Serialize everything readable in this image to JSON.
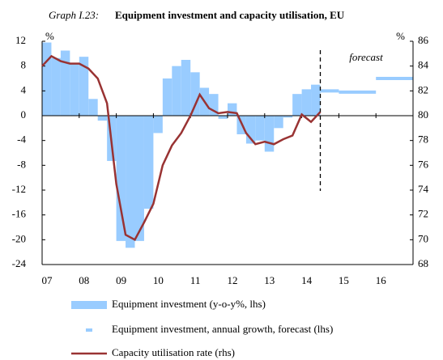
{
  "chart_data": {
    "type": "bar-line",
    "graph_label": "Graph I.23:",
    "title": "Equipment investment and capacity utilisation, EU",
    "y_unit": "%",
    "y2_unit": "%",
    "annotation": "forecast",
    "forecast_start": 2014.5,
    "xlim": [
      2007,
      2017
    ],
    "xticks": [
      {
        "value": 2007,
        "label": "07"
      },
      {
        "value": 2008,
        "label": "08"
      },
      {
        "value": 2009,
        "label": "09"
      },
      {
        "value": 2010,
        "label": "10"
      },
      {
        "value": 2011,
        "label": "11"
      },
      {
        "value": 2012,
        "label": "12"
      },
      {
        "value": 2013,
        "label": "13"
      },
      {
        "value": 2014,
        "label": "14"
      },
      {
        "value": 2015,
        "label": "15"
      },
      {
        "value": 2016,
        "label": "16"
      }
    ],
    "ylim": [
      -24,
      12
    ],
    "yticks": [
      -24,
      -20,
      -16,
      -12,
      -8,
      -4,
      0,
      4,
      8,
      12
    ],
    "y2lim": [
      68,
      86
    ],
    "y2ticks": [
      68,
      70,
      72,
      74,
      76,
      78,
      80,
      82,
      84,
      86
    ],
    "series": [
      {
        "name": "Equipment investment (y-o-y%, lhs)",
        "kind": "bar",
        "color": "#99ccff",
        "x": [
          2007,
          2007.25,
          2007.5,
          2007.75,
          2008,
          2008.25,
          2008.5,
          2008.75,
          2009,
          2009.25,
          2009.5,
          2009.75,
          2010,
          2010.25,
          2010.5,
          2010.75,
          2011,
          2011.25,
          2011.5,
          2011.75,
          2012,
          2012.25,
          2012.5,
          2012.75,
          2013,
          2013.25,
          2013.5,
          2013.75,
          2014,
          2014.25
        ],
        "values": [
          11.8,
          9.3,
          10.5,
          8.5,
          9.5,
          2.7,
          -0.8,
          -7.3,
          -20.2,
          -21.3,
          -20.2,
          -15,
          -2.8,
          6.0,
          8.0,
          9.0,
          7.0,
          4.5,
          3.5,
          -0.5,
          2.0,
          -3.0,
          -4.5,
          -4.0,
          -5.8,
          -2.0,
          -0.3,
          3.5,
          3.8,
          5.0
        ]
      },
      {
        "name": "Equipment investment, annual growth, forecast (lhs)",
        "kind": "forecast",
        "color": "#99ccff",
        "x": [
          2014,
          2015,
          2016
        ],
        "values": [
          4.0,
          3.8,
          6.0
        ]
      },
      {
        "name": "Capacity utilisation rate (rhs)",
        "kind": "line",
        "color": "#993333",
        "axis": "y2",
        "x": [
          2007,
          2007.25,
          2007.5,
          2007.75,
          2008,
          2008.25,
          2008.5,
          2008.75,
          2009,
          2009.25,
          2009.5,
          2009.75,
          2010,
          2010.25,
          2010.5,
          2010.75,
          2011,
          2011.25,
          2011.5,
          2011.75,
          2012,
          2012.25,
          2012.5,
          2012.75,
          2013,
          2013.25,
          2013.5,
          2013.75,
          2014,
          2014.25,
          2014.5
        ],
        "values": [
          84.0,
          84.8,
          84.4,
          84.2,
          84.2,
          83.8,
          83.0,
          81.0,
          74.5,
          70.4,
          70.0,
          71.4,
          72.9,
          76.0,
          77.6,
          78.6,
          80.0,
          81.7,
          80.6,
          80.2,
          80.3,
          80.2,
          78.6,
          77.7,
          77.9,
          77.7,
          78.1,
          78.4,
          80.1,
          79.5,
          80.3
        ]
      }
    ]
  }
}
